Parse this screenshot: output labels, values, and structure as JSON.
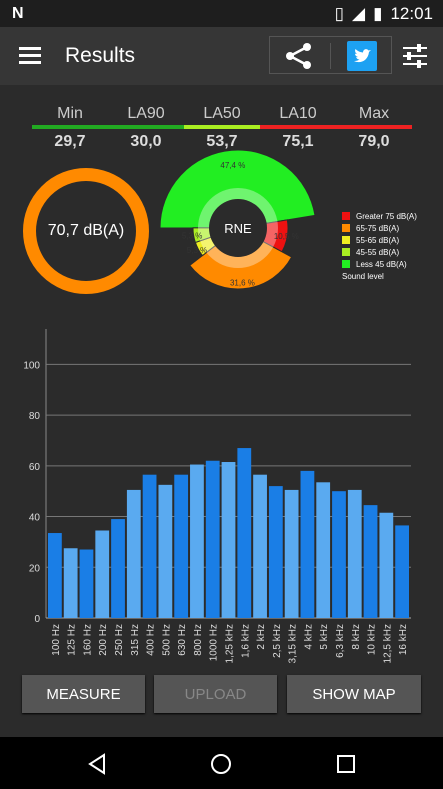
{
  "status_bar": {
    "time": "12:01"
  },
  "app_bar": {
    "title": "Results"
  },
  "stats": [
    {
      "label": "Min",
      "value": "29,7",
      "color": "#22aa22"
    },
    {
      "label": "LA90",
      "value": "30,0",
      "color": "#22aa22"
    },
    {
      "label": "LA50",
      "value": "53,7",
      "color": "#aaee22"
    },
    {
      "label": "LA10",
      "value": "75,1",
      "color": "#ee2222"
    },
    {
      "label": "Max",
      "value": "79,0",
      "color": "#ee2222"
    }
  ],
  "main_level": {
    "text": "70,7 dB(A)",
    "color": "#ff8a00"
  },
  "pie": {
    "center_label": "RNE",
    "slices": [
      {
        "label": "47,4 %",
        "value": 47.4,
        "color": "#22ee22"
      },
      {
        "label": "10,5 %",
        "value": 10.5,
        "color": "#ee1111"
      },
      {
        "label": "31,6 %",
        "value": 31.6,
        "color": "#ff8a00"
      },
      {
        "label": "5,3 %",
        "value": 5.3,
        "color": "#eeee22"
      },
      {
        "label": "5,3 %",
        "value": 5.3,
        "color": "#aaee22"
      }
    ]
  },
  "legend": {
    "items": [
      {
        "label": "Greater 75 dB(A)",
        "color": "#ee1111"
      },
      {
        "label": "65-75 dB(A)",
        "color": "#ff8a00"
      },
      {
        "label": "55-65 dB(A)",
        "color": "#eeee22"
      },
      {
        "label": "45-55 dB(A)",
        "color": "#aaee22"
      },
      {
        "label": "Less 45 dB(A)",
        "color": "#22ee22"
      }
    ],
    "caption": "Sound level"
  },
  "chart_data": {
    "type": "bar",
    "categories": [
      "100 Hz",
      "125 Hz",
      "160 Hz",
      "200 Hz",
      "250 Hz",
      "315 Hz",
      "400 Hz",
      "500 Hz",
      "630 Hz",
      "800 Hz",
      "1000 Hz",
      "1,25 kHz",
      "1,6 kHz",
      "2 kHz",
      "2,5 kHz",
      "3,15 kHz",
      "4 kHz",
      "5 kHz",
      "6,3 kHz",
      "8 kHz",
      "10 kHz",
      "12,5 kHz",
      "16 kHz"
    ],
    "values": [
      33.5,
      27.5,
      27,
      34.5,
      39,
      50.5,
      56.5,
      52.5,
      56.5,
      60.5,
      62,
      61.5,
      67,
      56.5,
      52,
      50.5,
      58,
      53.5,
      50,
      50.5,
      44.5,
      41.5,
      36.5
    ],
    "ylim": [
      0,
      110
    ],
    "yticks": [
      0,
      20,
      40,
      60,
      80,
      100
    ],
    "grid": true,
    "colors": [
      "#1a7ee6",
      "#5aaaf0"
    ]
  },
  "buttons": {
    "measure": "MEASURE",
    "upload": "UPLOAD",
    "show_map": "SHOW MAP"
  }
}
